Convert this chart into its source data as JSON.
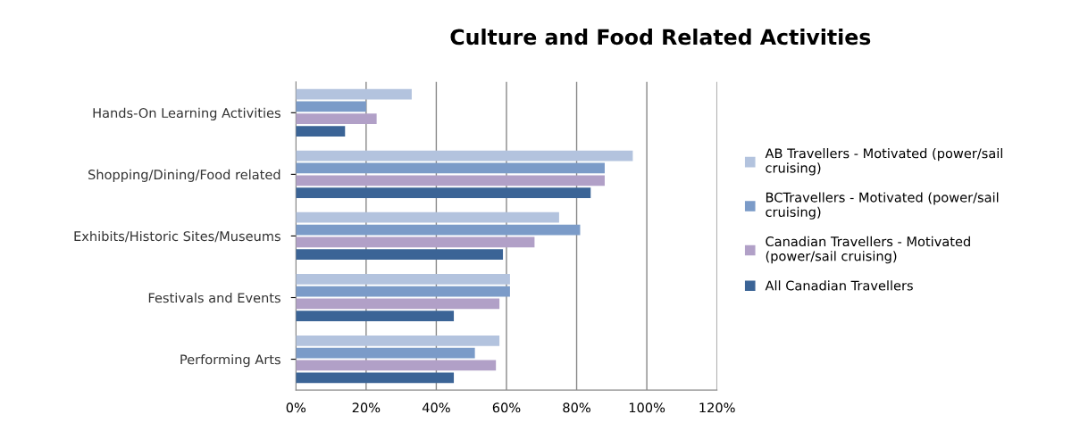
{
  "chart_data": {
    "type": "bar",
    "orientation": "horizontal",
    "title": "Culture and Food Related Activities",
    "categories": [
      "Hands-On Learning Activities",
      "Shopping/Dining/Food related",
      "Exhibits/Historic Sites/Museums",
      "Festivals and Events",
      "Performing Arts"
    ],
    "series": [
      {
        "name": "AB Travellers - Motivated (power/sail\ncruising)",
        "color": "#b3c3de",
        "values": [
          33,
          96,
          75,
          61,
          58
        ]
      },
      {
        "name": "BCTravellers - Motivated (power/sail\ncruising)",
        "color": "#7b9bc8",
        "values": [
          20,
          88,
          81,
          61,
          51
        ]
      },
      {
        "name": "Canadian Travellers - Motivated\n(power/sail cruising)",
        "color": "#b1a0c7",
        "values": [
          23,
          88,
          68,
          58,
          57
        ]
      },
      {
        "name": "All Canadian Travellers",
        "color": "#3b6496",
        "values": [
          14,
          84,
          59,
          45,
          45
        ]
      }
    ],
    "xlim": [
      0,
      120
    ],
    "xticks": [
      {
        "value": 0,
        "label": "0%"
      },
      {
        "value": 20,
        "label": "20%"
      },
      {
        "value": 40,
        "label": "40%"
      },
      {
        "value": 60,
        "label": "60%"
      },
      {
        "value": 80,
        "label": "80%"
      },
      {
        "value": 100,
        "label": "100%"
      },
      {
        "value": 120,
        "label": "120%"
      }
    ],
    "grid": "x",
    "legend": "right"
  }
}
